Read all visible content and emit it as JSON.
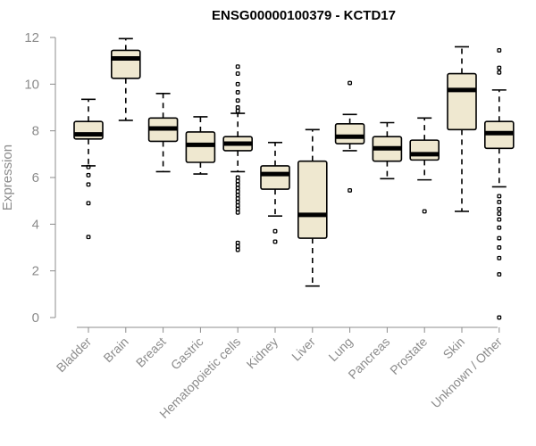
{
  "chart_data": {
    "type": "boxplot",
    "title": "ENSG00000100379 - KCTD17",
    "xlabel": "",
    "ylabel": "Expression",
    "ylim": [
      0,
      12
    ],
    "yticks": [
      0,
      2,
      4,
      6,
      8,
      10,
      12
    ],
    "grid": false,
    "box_color": "#efe8d0",
    "series": [
      {
        "name": "Bladder",
        "q1": 7.65,
        "median": 7.85,
        "q3": 8.4,
        "whisker_low": 6.5,
        "whisker_high": 9.35,
        "outliers": [
          3.45,
          4.9,
          5.7,
          6.1,
          6.45
        ]
      },
      {
        "name": "Brain",
        "q1": 10.25,
        "median": 11.1,
        "q3": 11.45,
        "whisker_low": 8.45,
        "whisker_high": 11.95,
        "outliers": []
      },
      {
        "name": "Breast",
        "q1": 7.55,
        "median": 8.1,
        "q3": 8.55,
        "whisker_low": 6.25,
        "whisker_high": 9.6,
        "outliers": []
      },
      {
        "name": "Gastric",
        "q1": 6.65,
        "median": 7.4,
        "q3": 7.95,
        "whisker_low": 6.15,
        "whisker_high": 8.6,
        "outliers": []
      },
      {
        "name": "Hematopoietic cells",
        "q1": 7.15,
        "median": 7.45,
        "q3": 7.75,
        "whisker_low": 6.25,
        "whisker_high": 8.75,
        "outliers": [
          2.9,
          3.05,
          3.2,
          4.5,
          4.65,
          4.8,
          4.95,
          5.1,
          5.25,
          5.4,
          5.55,
          5.7,
          5.85,
          6.0,
          8.85,
          9.0,
          9.3,
          9.65,
          10.0,
          10.45,
          10.75
        ]
      },
      {
        "name": "Kidney",
        "q1": 5.5,
        "median": 6.15,
        "q3": 6.5,
        "whisker_low": 4.35,
        "whisker_high": 7.5,
        "outliers": [
          3.25,
          3.7
        ]
      },
      {
        "name": "Liver",
        "q1": 3.4,
        "median": 4.4,
        "q3": 6.7,
        "whisker_low": 1.35,
        "whisker_high": 8.05,
        "outliers": []
      },
      {
        "name": "Lung",
        "q1": 7.45,
        "median": 7.75,
        "q3": 8.3,
        "whisker_low": 7.15,
        "whisker_high": 8.7,
        "outliers": [
          5.45,
          10.05
        ]
      },
      {
        "name": "Pancreas",
        "q1": 6.7,
        "median": 7.25,
        "q3": 7.75,
        "whisker_low": 5.95,
        "whisker_high": 8.35,
        "outliers": []
      },
      {
        "name": "Prostate",
        "q1": 6.75,
        "median": 7.0,
        "q3": 7.6,
        "whisker_low": 5.9,
        "whisker_high": 8.55,
        "outliers": [
          4.55
        ]
      },
      {
        "name": "Skin",
        "q1": 8.05,
        "median": 9.75,
        "q3": 10.45,
        "whisker_low": 4.55,
        "whisker_high": 11.6,
        "outliers": []
      },
      {
        "name": "Unknown / Other",
        "q1": 7.25,
        "median": 7.9,
        "q3": 8.4,
        "whisker_low": 5.6,
        "whisker_high": 9.75,
        "outliers": [
          0.0,
          1.85,
          2.55,
          3.0,
          3.4,
          3.85,
          4.2,
          4.45,
          4.65,
          4.95,
          5.2,
          10.5,
          10.7,
          11.45
        ]
      }
    ]
  }
}
